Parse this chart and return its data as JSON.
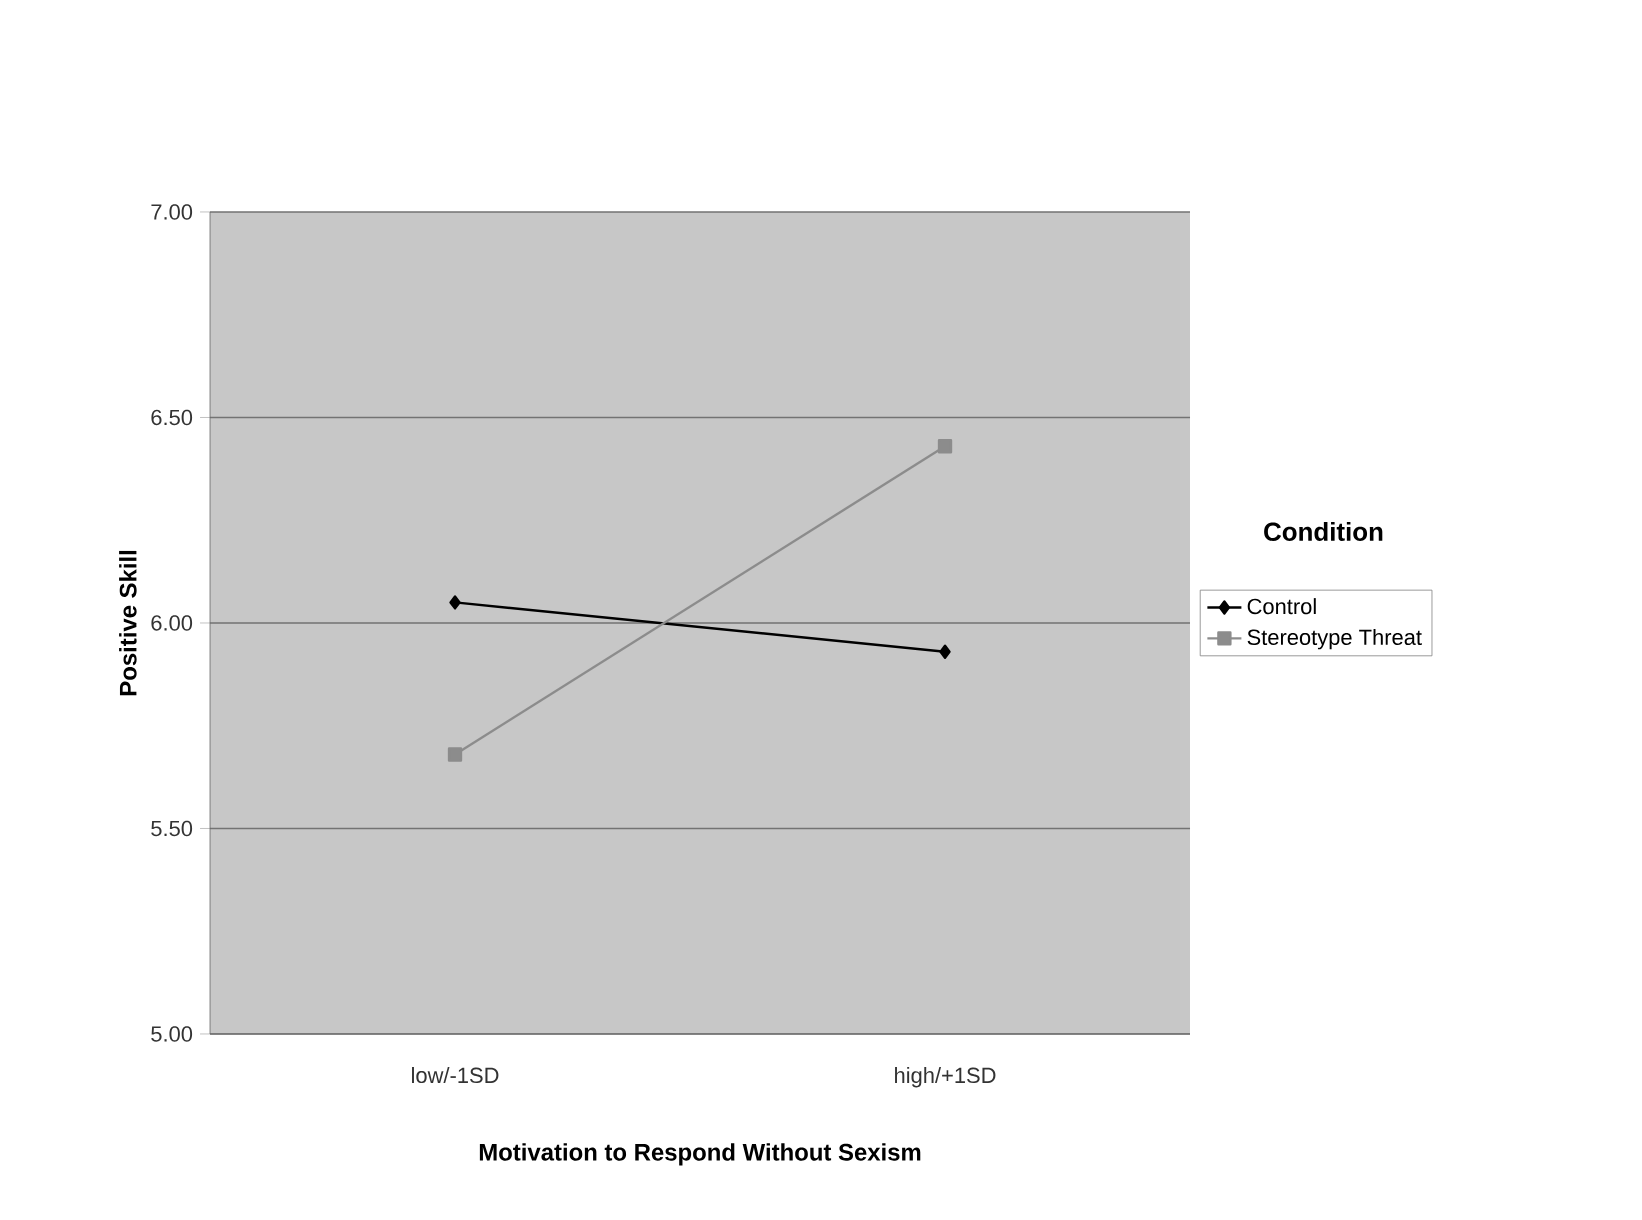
{
  "chart_data": {
    "type": "line",
    "xlabel": "Motivation to Respond Without Sexism",
    "ylabel": "Positive Skill",
    "legend_title": "Condition",
    "categories": [
      "low/-1SD",
      "high/+1SD"
    ],
    "series": [
      {
        "name": "Control",
        "color": "#000000",
        "marker": "diamond",
        "values": [
          6.05,
          5.93
        ]
      },
      {
        "name": "Stereotype Threat",
        "color": "#8c8c8c",
        "marker": "square",
        "values": [
          5.68,
          6.43
        ]
      }
    ],
    "ylim": [
      5.0,
      7.0
    ],
    "yticks": [
      {
        "value": 5.0,
        "label": "5.00"
      },
      {
        "value": 5.5,
        "label": "5.50"
      },
      {
        "value": 6.0,
        "label": "6.00"
      },
      {
        "value": 6.5,
        "label": "6.50"
      },
      {
        "value": 7.0,
        "label": "7.00"
      }
    ],
    "grid": "y",
    "legend": "right"
  }
}
